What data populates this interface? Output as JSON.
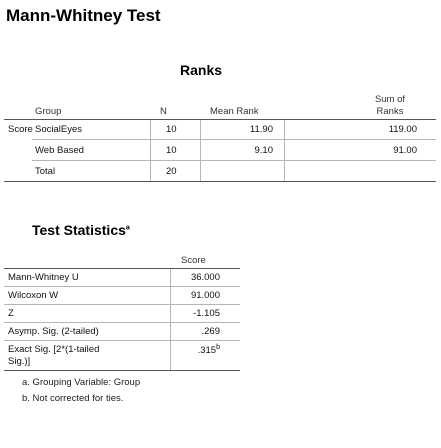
{
  "page_title": "Mann-Whitney Test",
  "ranks": {
    "title": "Ranks",
    "headers": {
      "group": "Group",
      "n": "N",
      "mean_rank": "Mean Rank",
      "sum_line1": "Sum of",
      "sum_line2": "Ranks"
    },
    "row_label": "Score",
    "rows": [
      {
        "group": "SocialEyes",
        "n": "10",
        "mean_rank": "11.90",
        "sum": "119.00"
      },
      {
        "group": "Web Based",
        "n": "10",
        "mean_rank": "9.10",
        "sum": "91.00"
      },
      {
        "group": "Total",
        "n": "20",
        "mean_rank": "",
        "sum": ""
      }
    ]
  },
  "test_stats": {
    "title": "Test Statistics",
    "title_sup": "a",
    "col_header": "Score",
    "rows": [
      {
        "label": "Mann-Whitney U",
        "value": "36.000",
        "sup": ""
      },
      {
        "label": "Wilcoxon W",
        "value": "91.000",
        "sup": ""
      },
      {
        "label": "Z",
        "value": "-1.105",
        "sup": ""
      },
      {
        "label": "Asymp. Sig. (2-tailed)",
        "value": ".269",
        "sup": ""
      },
      {
        "label_line1": "Exact Sig. [2*(1-tailed",
        "label_line2": "Sig.)]",
        "value": ".315",
        "sup": "b"
      }
    ],
    "footnotes": [
      "a. Grouping Variable: Group",
      "b. Not corrected for ties."
    ]
  }
}
